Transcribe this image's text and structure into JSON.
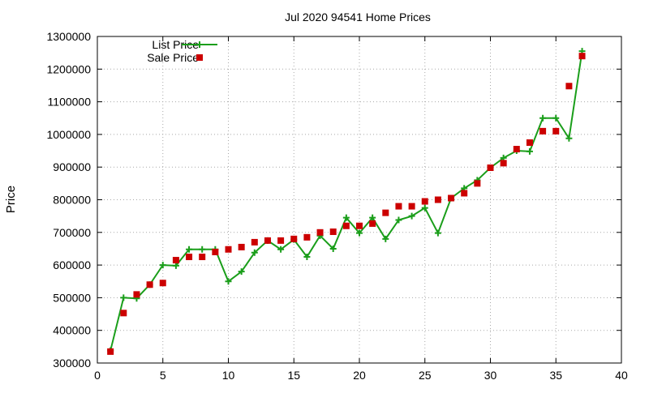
{
  "chart_data": {
    "type": "line",
    "title": "Jul 2020 94541 Home Prices",
    "xlabel": "",
    "ylabel": "Price",
    "xlim": [
      0,
      40
    ],
    "ylim": [
      300000,
      1300000
    ],
    "x_ticks": [
      0,
      5,
      10,
      15,
      20,
      25,
      30,
      35,
      40
    ],
    "y_ticks": [
      300000,
      400000,
      500000,
      600000,
      700000,
      800000,
      900000,
      1000000,
      1100000,
      1200000,
      1300000
    ],
    "grid": true,
    "legend_position": "top-left",
    "series": [
      {
        "name": "List Price",
        "style": "line-with-plus-markers",
        "color": "#1a9e1a",
        "x": [
          1,
          2,
          3,
          4,
          5,
          6,
          7,
          8,
          9,
          10,
          11,
          12,
          13,
          14,
          15,
          16,
          17,
          18,
          19,
          20,
          21,
          22,
          23,
          24,
          25,
          26,
          27,
          28,
          29,
          30,
          31,
          32,
          33,
          34,
          35,
          36,
          37
        ],
        "values": [
          338000,
          500000,
          498000,
          540000,
          600000,
          598000,
          648000,
          648000,
          648000,
          550000,
          580000,
          638000,
          675000,
          648000,
          678000,
          625000,
          690000,
          650000,
          745000,
          698000,
          745000,
          680000,
          738000,
          750000,
          775000,
          698000,
          805000,
          835000,
          860000,
          898000,
          928000,
          950000,
          948000,
          1050000,
          1050000,
          988000,
          1255000
        ]
      },
      {
        "name": "Sale Price",
        "style": "square-markers",
        "color": "#cc0000",
        "x": [
          1,
          2,
          3,
          4,
          5,
          6,
          7,
          8,
          9,
          10,
          11,
          12,
          13,
          14,
          15,
          16,
          17,
          18,
          19,
          20,
          21,
          22,
          23,
          24,
          25,
          26,
          27,
          28,
          29,
          30,
          31,
          32,
          33,
          34,
          35,
          36,
          37
        ],
        "values": [
          335000,
          453000,
          510000,
          540000,
          545000,
          615000,
          625000,
          625000,
          640000,
          648000,
          655000,
          670000,
          675000,
          675000,
          680000,
          685000,
          700000,
          702000,
          720000,
          720000,
          727000,
          760000,
          780000,
          780000,
          795000,
          800000,
          805000,
          820000,
          850000,
          898000,
          912000,
          955000,
          975000,
          1010000,
          1010000,
          1148000,
          1240000
        ]
      }
    ]
  }
}
